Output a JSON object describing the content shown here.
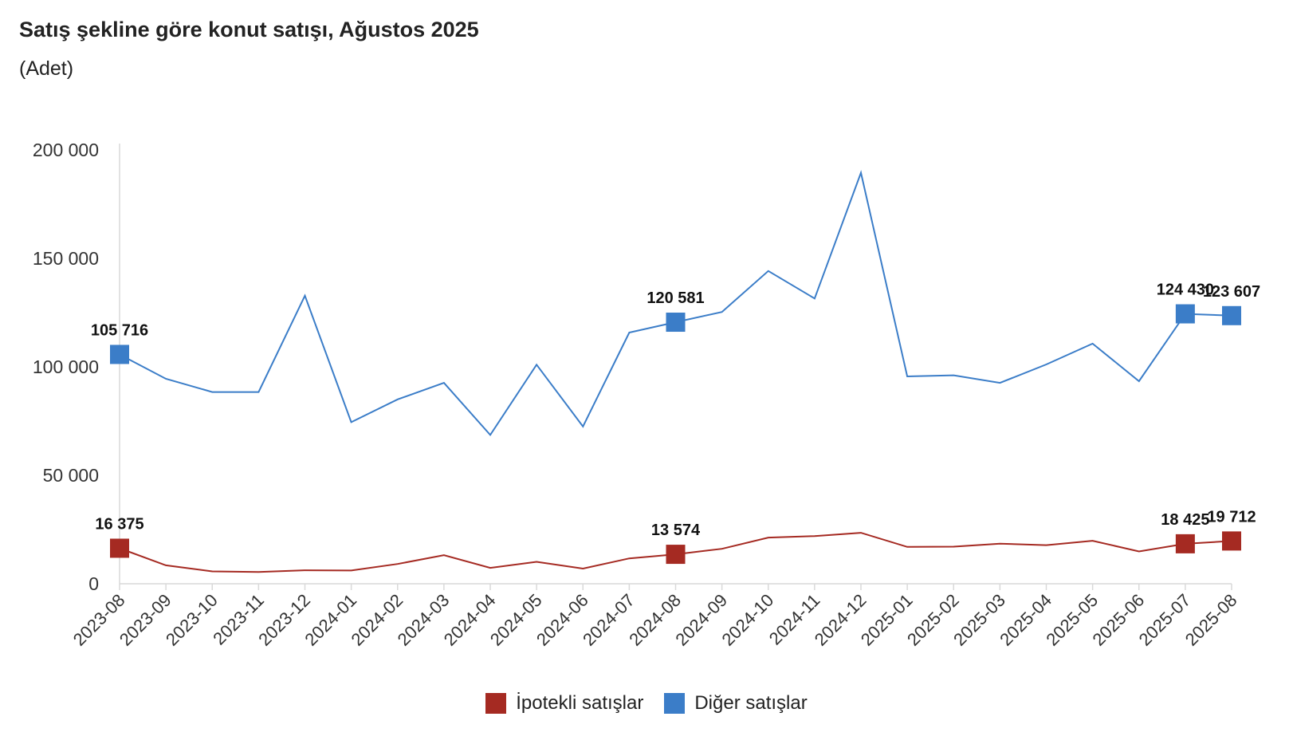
{
  "chart_data": {
    "type": "line",
    "title": "Satış şekline göre konut satışı, Ağustos 2025",
    "subtitle": "(Adet)",
    "xlabel": "",
    "ylabel": "",
    "ylim": [
      0,
      200000
    ],
    "yticks": [
      0,
      50000,
      100000,
      150000,
      200000
    ],
    "ytick_labels": [
      "0",
      "50 000",
      "100 000",
      "150 000",
      "200 000"
    ],
    "grid": false,
    "legend_position": "bottom",
    "categories": [
      "2023-08",
      "2023-09",
      "2023-10",
      "2023-11",
      "2023-12",
      "2024-01",
      "2024-02",
      "2024-03",
      "2024-04",
      "2024-05",
      "2024-06",
      "2024-07",
      "2024-08",
      "2024-09",
      "2024-10",
      "2024-11",
      "2024-12",
      "2025-01",
      "2025-02",
      "2025-03",
      "2025-04",
      "2025-05",
      "2025-06",
      "2025-07",
      "2025-08"
    ],
    "series": [
      {
        "name": "İpotekli satışlar",
        "color": "#a52a22",
        "values": [
          16375,
          8500,
          5700,
          5400,
          6200,
          6100,
          9100,
          13200,
          7300,
          10100,
          7000,
          11700,
          13574,
          16100,
          21300,
          22000,
          23500,
          17000,
          17100,
          18500,
          17800,
          19800,
          14900,
          18425,
          19712
        ],
        "labeled_points": [
          {
            "index": 0,
            "label": "16 375"
          },
          {
            "index": 12,
            "label": "13 574"
          },
          {
            "index": 23,
            "label": "18 425"
          },
          {
            "index": 24,
            "label": "19 712"
          }
        ]
      },
      {
        "name": "Diğer satışlar",
        "color": "#3b7dc8",
        "values": [
          105716,
          94500,
          88400,
          88400,
          132800,
          74500,
          85000,
          92600,
          68600,
          101000,
          72500,
          115800,
          120581,
          125300,
          144200,
          131500,
          189500,
          95600,
          96100,
          92600,
          101100,
          110700,
          93400,
          124430,
          123607
        ],
        "labeled_points": [
          {
            "index": 0,
            "label": "105 716"
          },
          {
            "index": 12,
            "label": "120 581"
          },
          {
            "index": 23,
            "label": "124 430"
          },
          {
            "index": 24,
            "label": "123 607"
          }
        ]
      }
    ]
  }
}
